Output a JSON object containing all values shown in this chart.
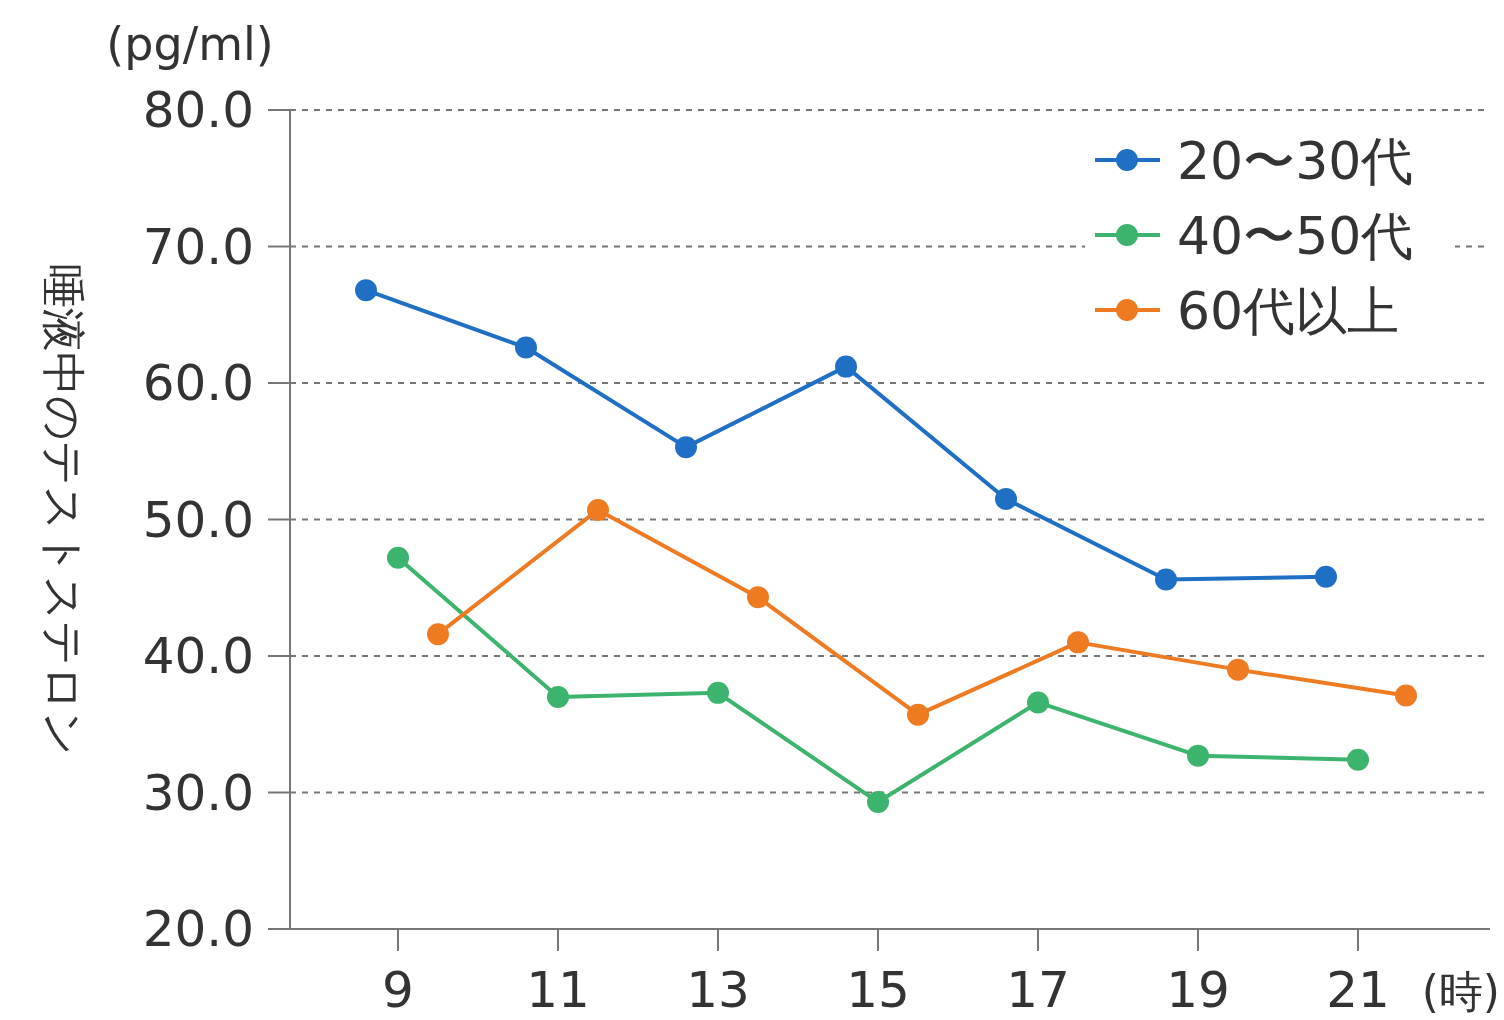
{
  "chart_data": {
    "type": "line",
    "xlabel": "(時)",
    "ylabel": "唾液中のテストステロン",
    "annotations": [
      "(pg/ml)"
    ],
    "xlim": [
      7.65,
      22.65
    ],
    "xticks": [
      9,
      11,
      13,
      15,
      17,
      19,
      21
    ],
    "ylim": [
      20,
      80
    ],
    "yticks": [
      {
        "value": 20,
        "label": "20.0"
      },
      {
        "value": 30,
        "label": "30.0"
      },
      {
        "value": 40,
        "label": "40.0"
      },
      {
        "value": 50,
        "label": "50.0"
      },
      {
        "value": 60,
        "label": "60.0"
      },
      {
        "value": 70,
        "label": "70.0"
      },
      {
        "value": 80,
        "label": "80.0"
      }
    ],
    "grid": "y",
    "legend": "top right",
    "marker": "circle",
    "line_style": "solid",
    "series": [
      {
        "name": "20〜30代",
        "color": "#1f6fc5",
        "x": [
          8.6,
          10.6,
          12.6,
          14.6,
          16.6,
          18.6,
          20.6
        ],
        "values": [
          66.8,
          62.6,
          55.3,
          61.2,
          51.5,
          45.6,
          45.8
        ]
      },
      {
        "name": "40〜50代",
        "color": "#3cb46e",
        "x": [
          9.0,
          11.0,
          13.0,
          15.0,
          17.0,
          19.0,
          21.0
        ],
        "values": [
          47.2,
          37.0,
          37.3,
          29.3,
          36.6,
          32.7,
          32.4
        ]
      },
      {
        "name": "60代以上",
        "color": "#ee7a22",
        "x": [
          9.5,
          11.5,
          13.5,
          15.5,
          17.5,
          19.5,
          21.6
        ],
        "values": [
          41.6,
          50.7,
          44.3,
          35.7,
          41.0,
          39.0,
          37.1
        ]
      }
    ]
  }
}
